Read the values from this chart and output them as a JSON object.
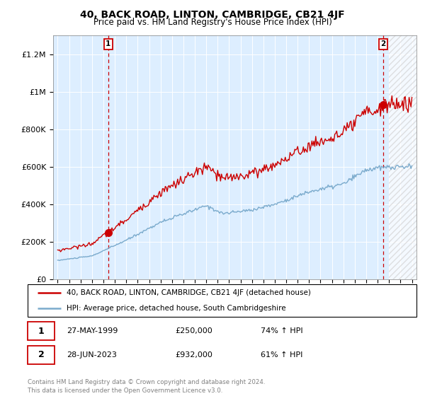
{
  "title": "40, BACK ROAD, LINTON, CAMBRIDGE, CB21 4JF",
  "subtitle": "Price paid vs. HM Land Registry's House Price Index (HPI)",
  "legend_line1": "40, BACK ROAD, LINTON, CAMBRIDGE, CB21 4JF (detached house)",
  "legend_line2": "HPI: Average price, detached house, South Cambridgeshire",
  "transaction1_date": "27-MAY-1999",
  "transaction1_price": "£250,000",
  "transaction1_hpi": "74% ↑ HPI",
  "transaction2_date": "28-JUN-2023",
  "transaction2_price": "£932,000",
  "transaction2_hpi": "61% ↑ HPI",
  "footer": "Contains HM Land Registry data © Crown copyright and database right 2024.\nThis data is licensed under the Open Government Licence v3.0.",
  "red_color": "#cc0000",
  "blue_color": "#7aaacc",
  "fill_color": "#ddeeff",
  "dashed_red": "#cc0000",
  "ylim": [
    0,
    1300000
  ],
  "yticks": [
    0,
    200000,
    400000,
    600000,
    800000,
    1000000,
    1200000
  ],
  "ytick_labels": [
    "£0",
    "£200K",
    "£400K",
    "£600K",
    "£800K",
    "£1M",
    "£1.2M"
  ],
  "xstart": 1995,
  "xend": 2026,
  "xlim_low": 1994.6,
  "xlim_high": 2026.4,
  "marker1_x": 1999.42,
  "marker1_y": 250000,
  "marker2_x": 2023.5,
  "marker2_y": 932000,
  "vline1_x": 1999.42,
  "vline2_x": 2023.5,
  "hatch_start": 2024.0
}
